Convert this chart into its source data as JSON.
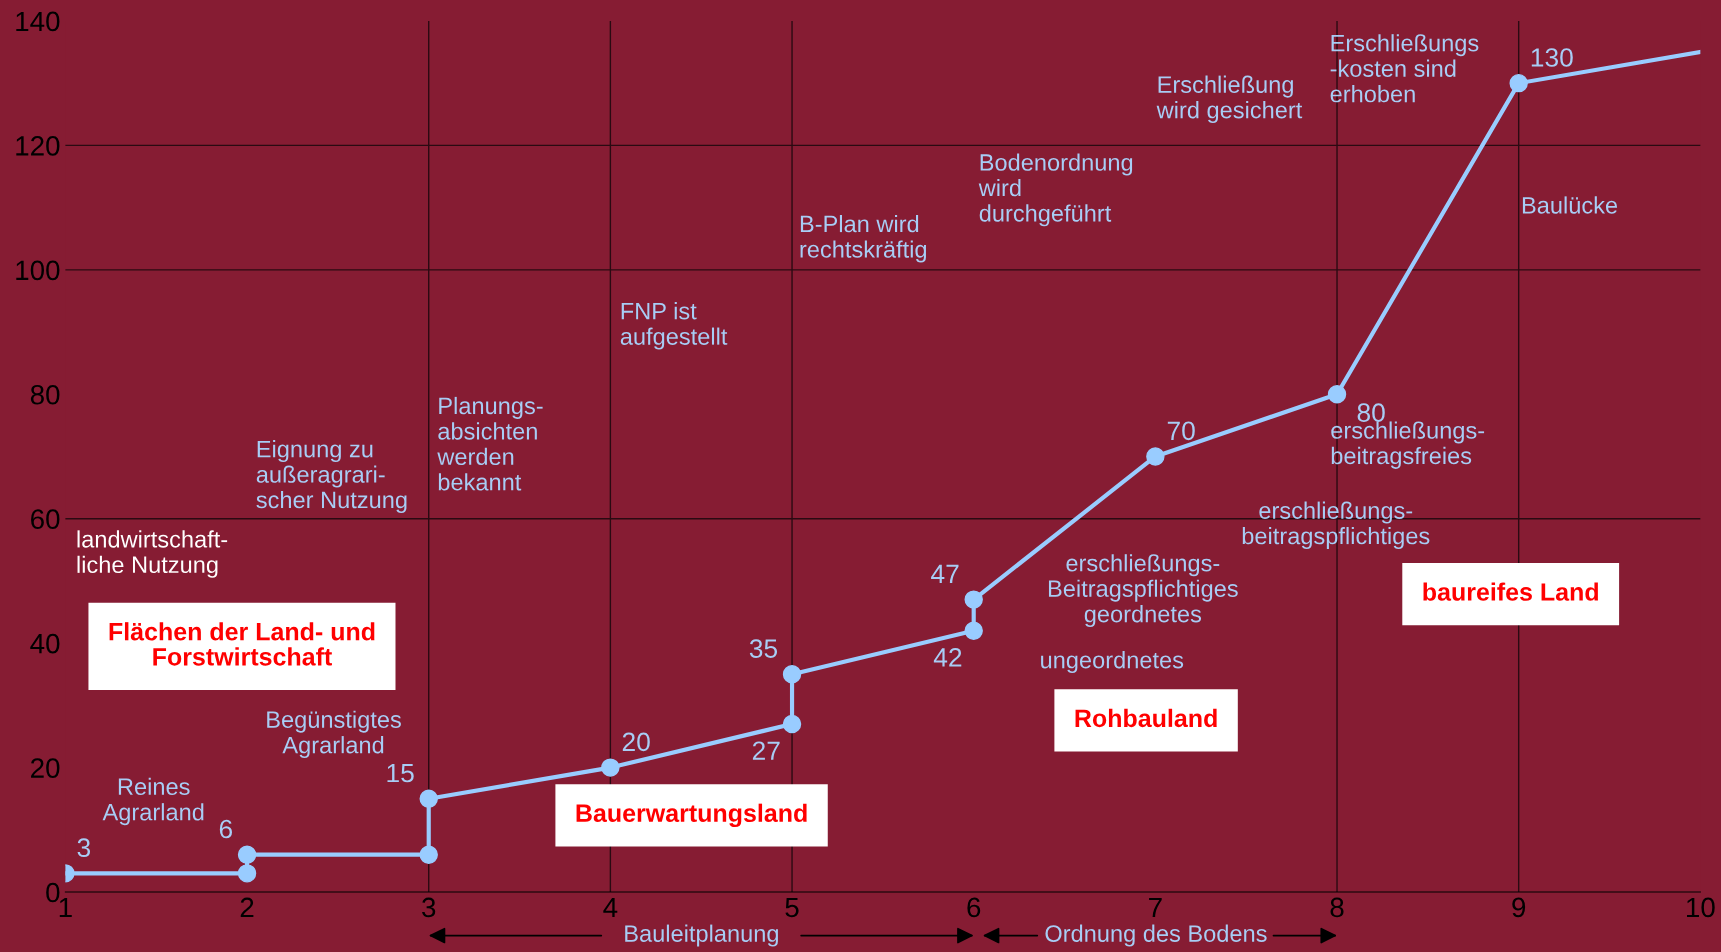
{
  "chart_data": {
    "type": "line",
    "xlim": [
      1,
      10
    ],
    "xticks": [
      1,
      2,
      3,
      4,
      5,
      6,
      7,
      8,
      9,
      10
    ],
    "ylim": [
      0,
      140
    ],
    "yticks": [
      0,
      20,
      40,
      60,
      80,
      100,
      120,
      140
    ],
    "series": [
      {
        "color": "#99ccff",
        "marker": "none",
        "x": [
          1,
          2,
          2,
          3,
          3,
          4,
          5,
          5,
          6,
          6,
          7,
          8,
          9,
          10
        ],
        "values": [
          3,
          3,
          6,
          6,
          15,
          20,
          27,
          35,
          42,
          47,
          70,
          80,
          130,
          135
        ]
      },
      {
        "type": "scatter",
        "color": "#99ccff",
        "marker": "circle",
        "x": [
          1,
          2,
          2,
          3,
          3,
          4,
          5,
          5,
          6,
          6,
          7,
          8,
          9
        ],
        "values": [
          3,
          3,
          6,
          6,
          15,
          20,
          27,
          35,
          42,
          47,
          70,
          80,
          130
        ],
        "value_labels": [
          "3",
          null,
          "6",
          null,
          "15",
          "20",
          "27",
          "35",
          "42",
          "47",
          "70",
          "80",
          "130"
        ]
      }
    ],
    "ref_lines": [
      {
        "axis": "x",
        "value": 3,
        "color": "#2a0a12"
      },
      {
        "axis": "x",
        "value": 4,
        "color": "#2a0a12"
      },
      {
        "axis": "x",
        "value": 5,
        "color": "#2a0a12"
      },
      {
        "axis": "x",
        "value": 8,
        "color": "#2a0a12"
      },
      {
        "axis": "x",
        "value": 9,
        "color": "#2a0a12"
      },
      {
        "axis": "y",
        "value": 60,
        "color": "#2a0a12"
      },
      {
        "axis": "y",
        "value": 100,
        "color": "#2a0a12"
      },
      {
        "axis": "y",
        "value": 120,
        "color": "#2a0a12"
      }
    ],
    "annotations": [
      "Flächen der Land- und\nForstwirtschaft",
      "Bauerwartungsland",
      "Rohbauland",
      "baureifes Land",
      "landwirtschaft-\nliche Nutzung",
      "Reines\nAgrarland",
      "Begünstigtes\nAgrarland",
      "Eignung zu\naußeragrari-\nscher Nutzung",
      "Planungs-\nabsichten\nwerden\nbekannt",
      "FNP ist\naufgestellt",
      "B-Plan wird\nrechtskräftig",
      "Bodenordnung\nwird\ndurchgeführt",
      "Erschließung\nwird gesichert",
      "Erschließungs\n-kosten sind\nerhoben",
      "Baulücke",
      "erschließungs-\nbeitragsfreies",
      "erschließungs-\nbeitragspflichtiges",
      "erschließungs-\nBeitragspflichtiges\ngeordnetes",
      "ungeordnetes",
      "Bauleitplanung",
      "Ordnung des Bodens"
    ]
  }
}
